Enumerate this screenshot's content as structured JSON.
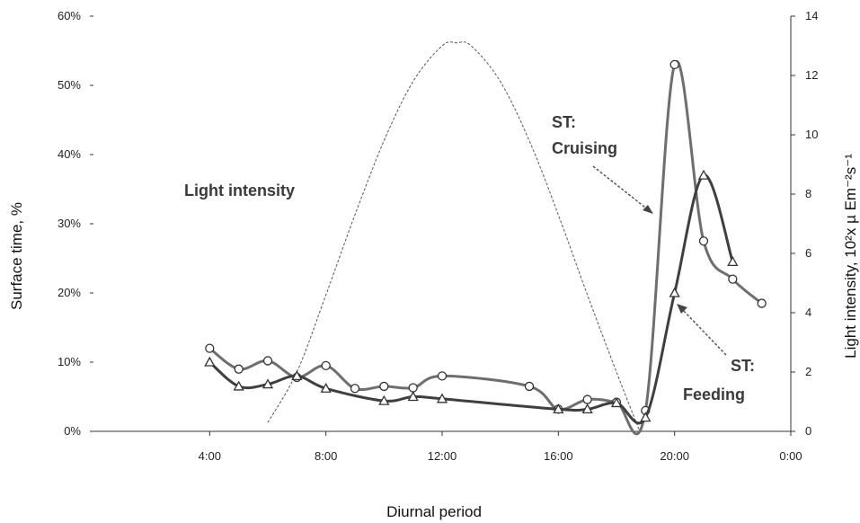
{
  "chart_data": {
    "type": "line",
    "xlabel": "Diurnal period",
    "ylabel_left": "Surface time, %",
    "ylabel_right": "Light intensity, 10²x µ Em⁻²s⁻¹",
    "x_tick_labels": [
      "4:00",
      "8:00",
      "12:00",
      "16:00",
      "20:00",
      "0:00"
    ],
    "x_tick_values": [
      4,
      8,
      12,
      16,
      20,
      24
    ],
    "xlim": [
      0,
      24
    ],
    "y_left_tick_labels": [
      "0%",
      "10%",
      "20%",
      "30%",
      "40%",
      "50%",
      "60%"
    ],
    "y_left_tick_values": [
      0,
      10,
      20,
      30,
      40,
      50,
      60
    ],
    "ylim_left": [
      0,
      60
    ],
    "y_right_tick_labels": [
      "0",
      "2",
      "4",
      "6",
      "8",
      "10",
      "12",
      "14"
    ],
    "y_right_tick_values": [
      0,
      2,
      4,
      6,
      8,
      10,
      12,
      14
    ],
    "ylim_right": [
      0,
      14
    ],
    "grid": false,
    "annotations": {
      "light": "Light intensity",
      "cruising_line1": "ST:",
      "cruising_line2": "Cruising",
      "feeding_line1": "ST:",
      "feeding_line2": "Feeding"
    },
    "series": [
      {
        "name": "ST: Cruising",
        "marker": "circle",
        "axis": "left",
        "x": [
          4,
          5,
          6,
          7,
          8,
          9,
          10,
          11,
          12,
          15,
          16,
          17,
          18,
          19,
          20,
          21,
          22,
          23
        ],
        "y": [
          12,
          9,
          10.2,
          7.8,
          9.5,
          6.2,
          6.5,
          6.3,
          8,
          6.5,
          3.2,
          4.6,
          4.2,
          3,
          53,
          27.5,
          22,
          18.5
        ]
      },
      {
        "name": "ST: Feeding",
        "marker": "triangle",
        "axis": "left",
        "x": [
          4,
          5,
          6,
          7,
          8,
          10,
          11,
          12,
          16,
          17,
          18,
          19,
          20,
          21,
          22
        ],
        "y": [
          10,
          6.5,
          6.8,
          8,
          6.2,
          4.4,
          5,
          4.7,
          3.2,
          3.2,
          4.1,
          2,
          20,
          37,
          24.5
        ]
      },
      {
        "name": "Light intensity",
        "axis": "right",
        "x": [
          6,
          7,
          8,
          9,
          10,
          11,
          12,
          12.5,
          13,
          14,
          15,
          16,
          17,
          18,
          18.8
        ],
        "y": [
          0.3,
          2.0,
          4.6,
          7.3,
          9.8,
          11.8,
          13.0,
          13.1,
          13.0,
          11.8,
          9.8,
          7.3,
          4.6,
          2.0,
          0
        ]
      }
    ],
    "colors": {
      "cruising": "#6e6e6e",
      "feeding": "#3f3f3f",
      "light": "#555555"
    }
  }
}
